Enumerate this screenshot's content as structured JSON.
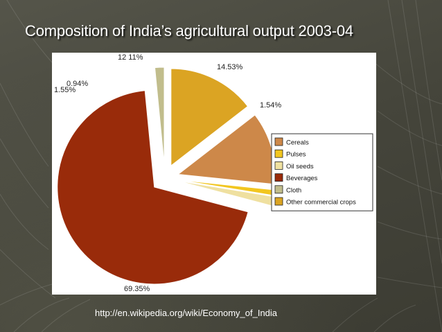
{
  "slide": {
    "title": "Composition of India’s agricultural output 2003-04",
    "source": "http://en.wikipedia.org/wiki/Economy_of_India"
  },
  "chart_data": {
    "type": "pie",
    "title": "",
    "exploded": true,
    "legend_position": "right",
    "slices": [
      {
        "name": "Cereals",
        "value": 12.11,
        "label": "12 11%",
        "color": "#cd8849"
      },
      {
        "name": "Pulses",
        "value": 0.94,
        "label": "0.94%",
        "color": "#f2c61f"
      },
      {
        "name": "Oil seeds",
        "value": 1.55,
        "label": "1.55%",
        "color": "#efe0a0"
      },
      {
        "name": "Beverages",
        "value": 69.35,
        "label": "69.35%",
        "color": "#992b0a"
      },
      {
        "name": "Cloth",
        "value": 1.54,
        "label": "1.54%",
        "color": "#c1bd8c"
      },
      {
        "name": "Other commercial crops",
        "value": 14.53,
        "label": "14.53%",
        "color": "#dba423"
      }
    ]
  }
}
